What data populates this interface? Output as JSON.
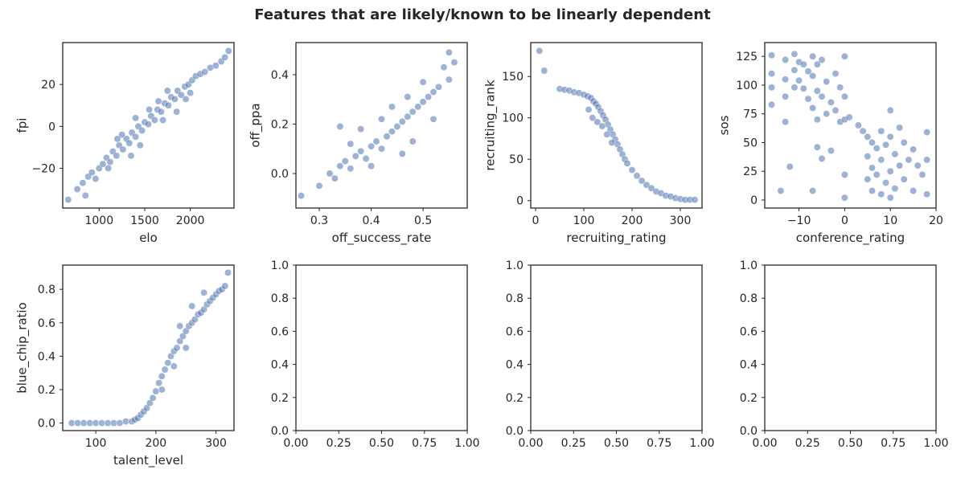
{
  "figure": {
    "title": "Features that are likely/known to be linearly dependent",
    "point_color": "#4c72b0",
    "point_opacity": 0.55
  },
  "chart_data": [
    {
      "type": "scatter",
      "xlabel": "elo",
      "ylabel": "fpi",
      "xlim": [
        600,
        2480
      ],
      "ylim": [
        -39,
        40
      ],
      "xticks": [
        1000,
        1500,
        2000
      ],
      "yticks": [
        -20,
        0,
        20
      ],
      "ytick_labels": [
        "−20",
        "0",
        "20"
      ],
      "points": [
        [
          660,
          -35
        ],
        [
          760,
          -30
        ],
        [
          820,
          -27
        ],
        [
          850,
          -33
        ],
        [
          880,
          -24
        ],
        [
          920,
          -22
        ],
        [
          960,
          -25
        ],
        [
          1000,
          -20
        ],
        [
          1040,
          -18
        ],
        [
          1080,
          -15
        ],
        [
          1120,
          -17
        ],
        [
          1150,
          -12
        ],
        [
          1190,
          -14
        ],
        [
          1220,
          -9
        ],
        [
          1260,
          -11
        ],
        [
          1300,
          -6
        ],
        [
          1330,
          -8
        ],
        [
          1360,
          -3
        ],
        [
          1400,
          -5
        ],
        [
          1430,
          0
        ],
        [
          1470,
          -2
        ],
        [
          1500,
          2
        ],
        [
          1540,
          1
        ],
        [
          1570,
          5
        ],
        [
          1610,
          3
        ],
        [
          1640,
          8
        ],
        [
          1680,
          7
        ],
        [
          1720,
          11
        ],
        [
          1760,
          10
        ],
        [
          1790,
          14
        ],
        [
          1830,
          13
        ],
        [
          1860,
          17
        ],
        [
          1900,
          15
        ],
        [
          1940,
          19
        ],
        [
          1980,
          20
        ],
        [
          2020,
          22
        ],
        [
          2060,
          24
        ],
        [
          2110,
          25
        ],
        [
          2160,
          26
        ],
        [
          2220,
          28
        ],
        [
          2280,
          29
        ],
        [
          2340,
          31
        ],
        [
          2380,
          33
        ],
        [
          2420,
          36
        ],
        [
          1100,
          -20
        ],
        [
          1250,
          -4
        ],
        [
          1450,
          -9
        ],
        [
          1650,
          12
        ],
        [
          1850,
          7
        ],
        [
          1350,
          -14
        ],
        [
          1550,
          8
        ],
        [
          1750,
          17
        ],
        [
          1950,
          13
        ],
        [
          1200,
          -6
        ],
        [
          1700,
          3
        ],
        [
          2000,
          16
        ],
        [
          1400,
          4
        ]
      ]
    },
    {
      "type": "scatter",
      "xlabel": "off_success_rate",
      "ylabel": "off_ppa",
      "xlim": [
        0.255,
        0.585
      ],
      "ylim": [
        -0.14,
        0.53
      ],
      "xticks": [
        0.3,
        0.4,
        0.5
      ],
      "yticks": [
        0.0,
        0.2,
        0.4
      ],
      "xtick_labels": [
        "0.3",
        "0.4",
        "0.5"
      ],
      "ytick_labels": [
        "0.0",
        "0.2",
        "0.4"
      ],
      "points": [
        [
          0.265,
          -0.09
        ],
        [
          0.3,
          -0.05
        ],
        [
          0.32,
          0.0
        ],
        [
          0.33,
          -0.02
        ],
        [
          0.34,
          0.03
        ],
        [
          0.35,
          0.05
        ],
        [
          0.36,
          0.02
        ],
        [
          0.37,
          0.07
        ],
        [
          0.38,
          0.09
        ],
        [
          0.39,
          0.06
        ],
        [
          0.4,
          0.11
        ],
        [
          0.41,
          0.13
        ],
        [
          0.42,
          0.1
        ],
        [
          0.43,
          0.15
        ],
        [
          0.44,
          0.17
        ],
        [
          0.45,
          0.19
        ],
        [
          0.46,
          0.21
        ],
        [
          0.47,
          0.23
        ],
        [
          0.48,
          0.25
        ],
        [
          0.49,
          0.27
        ],
        [
          0.5,
          0.29
        ],
        [
          0.51,
          0.31
        ],
        [
          0.52,
          0.33
        ],
        [
          0.53,
          0.35
        ],
        [
          0.54,
          0.43
        ],
        [
          0.55,
          0.49
        ],
        [
          0.56,
          0.45
        ],
        [
          0.34,
          0.19
        ],
        [
          0.4,
          0.03
        ],
        [
          0.44,
          0.27
        ],
        [
          0.48,
          0.13
        ],
        [
          0.5,
          0.37
        ],
        [
          0.46,
          0.08
        ],
        [
          0.38,
          0.18
        ],
        [
          0.52,
          0.22
        ],
        [
          0.42,
          0.22
        ],
        [
          0.36,
          0.12
        ],
        [
          0.55,
          0.38
        ],
        [
          0.47,
          0.31
        ]
      ]
    },
    {
      "type": "scatter",
      "xlabel": "recruiting_rating",
      "ylabel": "recruiting_rank",
      "xlim": [
        -10,
        345
      ],
      "ylim": [
        -9,
        191
      ],
      "xticks": [
        0,
        100,
        200,
        300
      ],
      "yticks": [
        0,
        50,
        100,
        150
      ],
      "points": [
        [
          8,
          181
        ],
        [
          18,
          157
        ],
        [
          50,
          135
        ],
        [
          60,
          134
        ],
        [
          70,
          133
        ],
        [
          80,
          131
        ],
        [
          90,
          130
        ],
        [
          100,
          128
        ],
        [
          108,
          126
        ],
        [
          115,
          124
        ],
        [
          120,
          120
        ],
        [
          125,
          117
        ],
        [
          130,
          113
        ],
        [
          135,
          108
        ],
        [
          140,
          103
        ],
        [
          145,
          98
        ],
        [
          150,
          92
        ],
        [
          155,
          86
        ],
        [
          160,
          80
        ],
        [
          165,
          74
        ],
        [
          170,
          68
        ],
        [
          175,
          62
        ],
        [
          180,
          56
        ],
        [
          185,
          50
        ],
        [
          190,
          45
        ],
        [
          200,
          37
        ],
        [
          210,
          30
        ],
        [
          220,
          24
        ],
        [
          230,
          19
        ],
        [
          240,
          15
        ],
        [
          250,
          11
        ],
        [
          260,
          9
        ],
        [
          270,
          6
        ],
        [
          280,
          5
        ],
        [
          290,
          3
        ],
        [
          300,
          2
        ],
        [
          310,
          1
        ],
        [
          320,
          1
        ],
        [
          330,
          1
        ],
        [
          110,
          110
        ],
        [
          118,
          100
        ],
        [
          128,
          95
        ],
        [
          138,
          90
        ],
        [
          148,
          80
        ],
        [
          158,
          70
        ]
      ]
    },
    {
      "type": "scatter",
      "xlabel": "conference_rating",
      "ylabel": "sos",
      "xlim": [
        -17.5,
        20
      ],
      "ylim": [
        -7,
        137
      ],
      "xticks": [
        -10,
        0,
        10,
        20
      ],
      "yticks": [
        0,
        25,
        50,
        75,
        100,
        125
      ],
      "xtick_labels": [
        "−10",
        "0",
        "10",
        "20"
      ],
      "points": [
        [
          -16,
          126
        ],
        [
          -16,
          110
        ],
        [
          -16,
          98
        ],
        [
          -16,
          83
        ],
        [
          -13,
          122
        ],
        [
          -13,
          105
        ],
        [
          -13,
          90
        ],
        [
          -13,
          68
        ],
        [
          -12,
          29
        ],
        [
          -11,
          127
        ],
        [
          -11,
          113
        ],
        [
          -11,
          98
        ],
        [
          -10,
          120
        ],
        [
          -10,
          104
        ],
        [
          -9,
          118
        ],
        [
          -9,
          97
        ],
        [
          -8,
          112
        ],
        [
          -8,
          88
        ],
        [
          -7,
          125
        ],
        [
          -7,
          108
        ],
        [
          -7,
          80
        ],
        [
          -6,
          118
        ],
        [
          -6,
          95
        ],
        [
          -6,
          70
        ],
        [
          -6,
          46
        ],
        [
          -5,
          122
        ],
        [
          -5,
          90
        ],
        [
          -5,
          36
        ],
        [
          -4,
          103
        ],
        [
          -4,
          75
        ],
        [
          -3,
          85
        ],
        [
          -3,
          43
        ],
        [
          -2,
          110
        ],
        [
          -2,
          78
        ],
        [
          -1,
          98
        ],
        [
          -1,
          68
        ],
        [
          0,
          125
        ],
        [
          0,
          90
        ],
        [
          0,
          70
        ],
        [
          0,
          22
        ],
        [
          0,
          2
        ],
        [
          1,
          72
        ],
        [
          3,
          65
        ],
        [
          4,
          60
        ],
        [
          5,
          55
        ],
        [
          5,
          38
        ],
        [
          5,
          18
        ],
        [
          6,
          50
        ],
        [
          6,
          28
        ],
        [
          6,
          8
        ],
        [
          7,
          45
        ],
        [
          7,
          22
        ],
        [
          8,
          60
        ],
        [
          8,
          35
        ],
        [
          8,
          5
        ],
        [
          9,
          48
        ],
        [
          9,
          15
        ],
        [
          10,
          78
        ],
        [
          10,
          55
        ],
        [
          10,
          25
        ],
        [
          10,
          2
        ],
        [
          11,
          40
        ],
        [
          11,
          10
        ],
        [
          12,
          63
        ],
        [
          12,
          30
        ],
        [
          13,
          50
        ],
        [
          13,
          18
        ],
        [
          14,
          35
        ],
        [
          15,
          44
        ],
        [
          15,
          8
        ],
        [
          16,
          30
        ],
        [
          17,
          22
        ],
        [
          18,
          59
        ],
        [
          18,
          35
        ],
        [
          18,
          5
        ],
        [
          -14,
          8
        ],
        [
          -7,
          8
        ]
      ]
    },
    {
      "type": "scatter",
      "xlabel": "talent_level",
      "ylabel": "blue_chip_ratio",
      "xlim": [
        45,
        330
      ],
      "ylim": [
        -0.045,
        0.945
      ],
      "xticks": [
        100,
        200,
        300
      ],
      "yticks": [
        0.0,
        0.2,
        0.4,
        0.6,
        0.8
      ],
      "ytick_labels": [
        "0.0",
        "0.2",
        "0.4",
        "0.6",
        "0.8"
      ],
      "points": [
        [
          60,
          0
        ],
        [
          70,
          0
        ],
        [
          80,
          0
        ],
        [
          90,
          0
        ],
        [
          100,
          0
        ],
        [
          110,
          0
        ],
        [
          120,
          0
        ],
        [
          130,
          0
        ],
        [
          140,
          0
        ],
        [
          150,
          0.01
        ],
        [
          160,
          0.01
        ],
        [
          165,
          0.02
        ],
        [
          170,
          0.03
        ],
        [
          175,
          0.05
        ],
        [
          180,
          0.07
        ],
        [
          185,
          0.09
        ],
        [
          190,
          0.12
        ],
        [
          195,
          0.15
        ],
        [
          200,
          0.19
        ],
        [
          205,
          0.24
        ],
        [
          210,
          0.28
        ],
        [
          215,
          0.32
        ],
        [
          220,
          0.36
        ],
        [
          225,
          0.4
        ],
        [
          230,
          0.43
        ],
        [
          235,
          0.45
        ],
        [
          240,
          0.49
        ],
        [
          245,
          0.52
        ],
        [
          250,
          0.55
        ],
        [
          255,
          0.58
        ],
        [
          260,
          0.6
        ],
        [
          265,
          0.62
        ],
        [
          270,
          0.65
        ],
        [
          275,
          0.66
        ],
        [
          280,
          0.68
        ],
        [
          285,
          0.71
        ],
        [
          290,
          0.73
        ],
        [
          295,
          0.75
        ],
        [
          300,
          0.77
        ],
        [
          305,
          0.79
        ],
        [
          310,
          0.8
        ],
        [
          315,
          0.82
        ],
        [
          320,
          0.9
        ],
        [
          240,
          0.58
        ],
        [
          260,
          0.7
        ],
        [
          280,
          0.78
        ],
        [
          230,
          0.34
        ],
        [
          250,
          0.45
        ],
        [
          210,
          0.2
        ]
      ]
    },
    {
      "type": "scatter",
      "xlabel": "",
      "ylabel": "",
      "xlim": [
        0,
        1
      ],
      "ylim": [
        0,
        1
      ],
      "xticks": [
        0,
        0.25,
        0.5,
        0.75,
        1.0
      ],
      "yticks": [
        0,
        0.2,
        0.4,
        0.6,
        0.8,
        1.0
      ],
      "xtick_labels": [
        "0.00",
        "0.25",
        "0.50",
        "0.75",
        "1.00"
      ],
      "ytick_labels": [
        "0.0",
        "0.2",
        "0.4",
        "0.6",
        "0.8",
        "1.0"
      ],
      "points": []
    },
    {
      "type": "scatter",
      "xlabel": "",
      "ylabel": "",
      "xlim": [
        0,
        1
      ],
      "ylim": [
        0,
        1
      ],
      "xticks": [
        0,
        0.25,
        0.5,
        0.75,
        1.0
      ],
      "yticks": [
        0,
        0.2,
        0.4,
        0.6,
        0.8,
        1.0
      ],
      "xtick_labels": [
        "0.00",
        "0.25",
        "0.50",
        "0.75",
        "1.00"
      ],
      "ytick_labels": [
        "0.0",
        "0.2",
        "0.4",
        "0.6",
        "0.8",
        "1.0"
      ],
      "points": []
    },
    {
      "type": "scatter",
      "xlabel": "",
      "ylabel": "",
      "xlim": [
        0,
        1
      ],
      "ylim": [
        0,
        1
      ],
      "xticks": [
        0,
        0.25,
        0.5,
        0.75,
        1.0
      ],
      "yticks": [
        0,
        0.2,
        0.4,
        0.6,
        0.8,
        1.0
      ],
      "xtick_labels": [
        "0.00",
        "0.25",
        "0.50",
        "0.75",
        "1.00"
      ],
      "ytick_labels": [
        "0.0",
        "0.2",
        "0.4",
        "0.6",
        "0.8",
        "1.0"
      ],
      "points": []
    }
  ]
}
